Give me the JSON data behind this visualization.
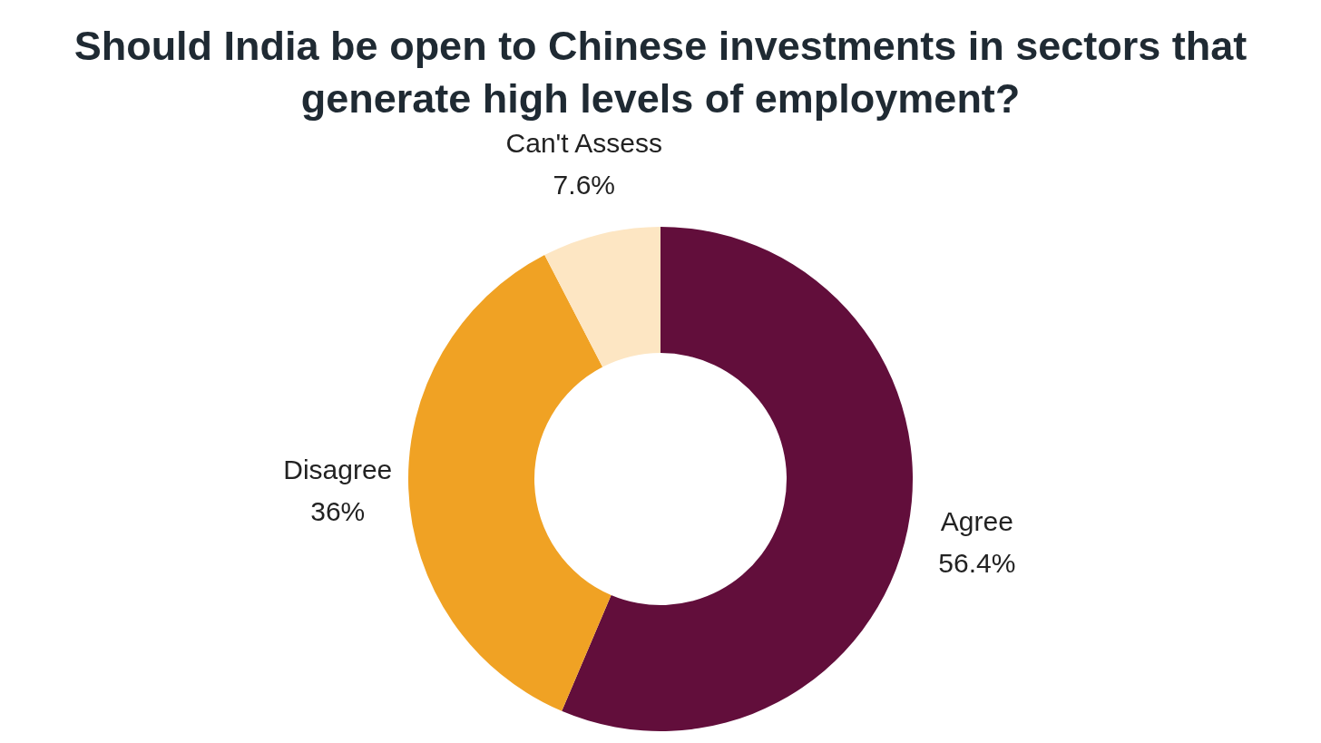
{
  "chart_data": {
    "type": "donut",
    "title": "Should India be open to Chinese investments in sectors that generate high levels of employment?",
    "categories": [
      "Agree",
      "Disagree",
      "Can't Assess"
    ],
    "values": [
      56.4,
      36,
      7.6
    ],
    "value_labels": [
      "56.4%",
      "36%",
      "7.6%"
    ],
    "colors": [
      "#620e3b",
      "#f0a224",
      "#fde6c3"
    ],
    "legend": false
  }
}
